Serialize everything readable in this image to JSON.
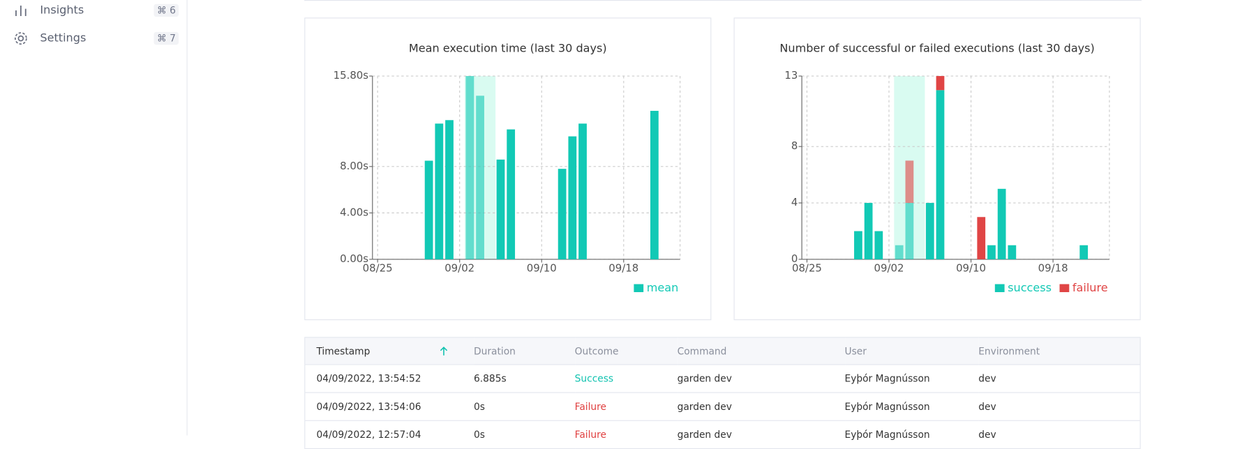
{
  "sidebar": {
    "items": [
      {
        "label": "Insights",
        "shortcut": "⌘ 6"
      },
      {
        "label": "Settings",
        "shortcut": "⌘ 7"
      }
    ]
  },
  "chart_data": [
    {
      "type": "bar",
      "title": "Mean execution time (last 30 days)",
      "categories": [
        "08/25",
        null,
        null,
        null,
        null,
        null,
        null,
        null,
        "09/02",
        null,
        null,
        null,
        null,
        null,
        null,
        null,
        "09/10",
        null,
        null,
        null,
        null,
        null,
        null,
        null,
        "09/18",
        null,
        null,
        null,
        null,
        null
      ],
      "series": [
        {
          "name": "mean",
          "color": "#12c9b5",
          "values": [
            null,
            null,
            null,
            null,
            null,
            8.5,
            11.7,
            12.0,
            null,
            15.8,
            14.1,
            null,
            8.6,
            11.2,
            null,
            null,
            null,
            null,
            7.8,
            10.6,
            11.7,
            null,
            null,
            null,
            null,
            null,
            null,
            12.8,
            null,
            null
          ]
        }
      ],
      "ylim": [
        0,
        15.8
      ],
      "yticks": [
        {
          "value": 0,
          "label": "0.00s"
        },
        {
          "value": 4,
          "label": "4.00s"
        },
        {
          "value": 8,
          "label": "8.00s"
        },
        {
          "value": 15.8,
          "label": "15.80s"
        }
      ],
      "grid": true,
      "legend": "bottom-right"
    },
    {
      "type": "bar",
      "title": "Number of successful or failed executions (last 30 days)",
      "stacked": true,
      "categories": [
        "08/25",
        null,
        null,
        null,
        null,
        null,
        null,
        null,
        "09/02",
        null,
        null,
        null,
        null,
        null,
        null,
        null,
        "09/10",
        null,
        null,
        null,
        null,
        null,
        null,
        null,
        "09/18",
        null,
        null,
        null,
        null,
        null
      ],
      "series": [
        {
          "name": "success",
          "color": "#12c9b5",
          "values": [
            null,
            null,
            null,
            null,
            null,
            2,
            4,
            2,
            null,
            1,
            4,
            null,
            4,
            12,
            null,
            null,
            null,
            null,
            1,
            5,
            1,
            null,
            null,
            null,
            null,
            null,
            null,
            1,
            null,
            null
          ]
        },
        {
          "name": "failure",
          "color": "#e04545",
          "values": [
            null,
            null,
            null,
            null,
            null,
            null,
            null,
            null,
            null,
            null,
            3,
            null,
            null,
            1,
            null,
            null,
            null,
            3,
            null,
            null,
            null,
            null,
            null,
            null,
            null,
            null,
            null,
            null,
            null,
            null
          ]
        }
      ],
      "ylim": [
        0,
        13
      ],
      "yticks": [
        0,
        4,
        8,
        13
      ],
      "grid": true,
      "legend": "bottom-right"
    }
  ],
  "table": {
    "header": [
      "Timestamp",
      "Duration",
      "Outcome",
      "Command",
      "User",
      "Environment"
    ],
    "rows": [
      [
        "04/09/2022, 13:54:52",
        "6.885s",
        "Success",
        "garden dev",
        "Eyþór Magnússon",
        "dev"
      ],
      [
        "04/09/2022, 13:54:06",
        "0s",
        "Failure",
        "garden dev",
        "Eyþór Magnússon",
        "dev"
      ],
      [
        "04/09/2022, 12:57:04",
        "0s",
        "Failure",
        "garden dev",
        "Eyþór Magnússon",
        "dev"
      ]
    ]
  }
}
